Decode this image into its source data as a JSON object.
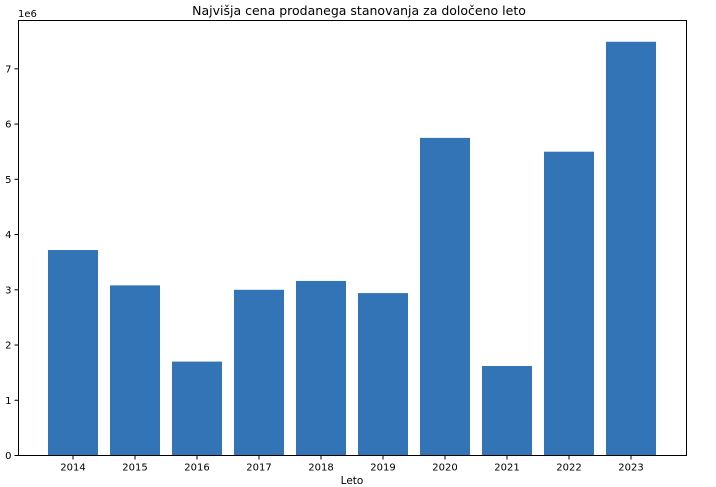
{
  "chart_data": {
    "type": "bar",
    "title": "Najvišja cena prodanega stanovanja za določeno leto",
    "xlabel": "Leto",
    "ylabel": "",
    "y_scale_label": "1e6",
    "categories": [
      "2014",
      "2015",
      "2016",
      "2017",
      "2018",
      "2019",
      "2020",
      "2021",
      "2022",
      "2023"
    ],
    "values": [
      3720000,
      3080000,
      1700000,
      3000000,
      3160000,
      2940000,
      5750000,
      1620000,
      5500000,
      7490000
    ],
    "ylim": [
      0,
      7875000
    ],
    "y_ticks": [
      0,
      1,
      2,
      3,
      4,
      5,
      6,
      7
    ],
    "y_tick_unit": 1000000,
    "bar_color": "#3274b5",
    "grid": false
  }
}
